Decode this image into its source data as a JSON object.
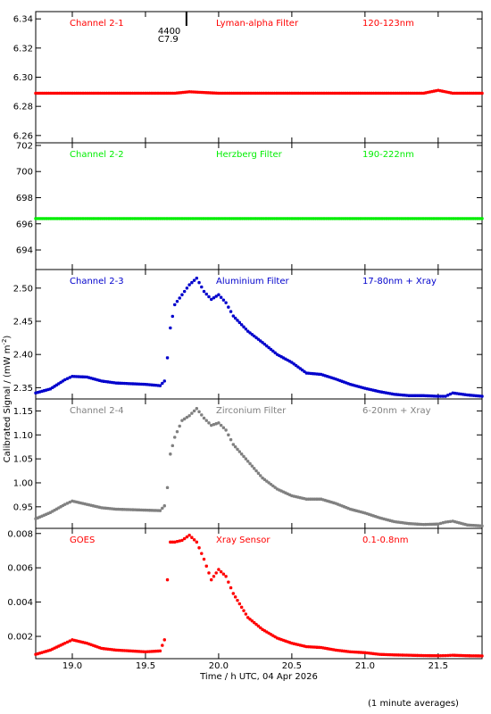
{
  "figure": {
    "xlabel": "Time / h UTC, 04 Apr 2026",
    "ylabel": "Calibrated Signal / (mW m",
    "ylabel_sup": "-2",
    "ylabel_end": ")",
    "footnote": "(1 minute averages)",
    "marker_label_1": "4400",
    "marker_label_2": "C7.9",
    "marker_time": 19.78
  },
  "chart_data": [
    {
      "type": "scatter",
      "channel": "Channel 2-1",
      "filter": "Lyman-alpha Filter",
      "band": "120-123nm",
      "color": "#ff0000",
      "xlim": [
        18.75,
        21.8
      ],
      "ylim": [
        6.255,
        6.345
      ],
      "yticks": [
        6.26,
        6.28,
        6.3,
        6.32,
        6.34
      ],
      "ytick_labels": [
        "6.26",
        "6.28",
        "6.30",
        "6.32",
        "6.34"
      ],
      "x": [
        18.75,
        19.0,
        19.5,
        19.7,
        19.8,
        20.0,
        20.5,
        21.0,
        21.4,
        21.5,
        21.6,
        21.8
      ],
      "y": [
        6.289,
        6.289,
        6.289,
        6.289,
        6.29,
        6.289,
        6.289,
        6.289,
        6.289,
        6.291,
        6.289,
        6.289
      ]
    },
    {
      "type": "scatter",
      "channel": "Channel 2-2",
      "filter": "Herzberg Filter",
      "band": "190-222nm",
      "color": "#00ee00",
      "xlim": [
        18.75,
        21.8
      ],
      "ylim": [
        692.5,
        702.2
      ],
      "yticks": [
        694,
        696,
        698,
        700,
        702
      ],
      "ytick_labels": [
        "694",
        "696",
        "698",
        "700",
        "702"
      ],
      "x": [
        18.75,
        19.5,
        20.0,
        20.5,
        21.0,
        21.5,
        21.8
      ],
      "y": [
        696.4,
        696.4,
        696.4,
        696.4,
        696.4,
        696.4,
        696.4
      ]
    },
    {
      "type": "scatter",
      "channel": "Channel 2-3",
      "filter": "Aluminium Filter",
      "band": "17-80nm + Xray",
      "color": "#0000cc",
      "xlim": [
        18.75,
        21.8
      ],
      "ylim": [
        2.333,
        2.528
      ],
      "yticks": [
        2.35,
        2.4,
        2.45,
        2.5
      ],
      "ytick_labels": [
        "2.35",
        "2.40",
        "2.45",
        "2.50"
      ],
      "x": [
        18.75,
        18.85,
        18.95,
        19.0,
        19.1,
        19.2,
        19.3,
        19.5,
        19.6,
        19.63,
        19.65,
        19.67,
        19.7,
        19.75,
        19.8,
        19.85,
        19.9,
        19.95,
        20.0,
        20.05,
        20.1,
        20.2,
        20.3,
        20.4,
        20.5,
        20.6,
        20.7,
        20.8,
        20.9,
        21.0,
        21.1,
        21.2,
        21.3,
        21.4,
        21.5,
        21.55,
        21.6,
        21.7,
        21.8
      ],
      "y": [
        2.342,
        2.348,
        2.362,
        2.367,
        2.366,
        2.36,
        2.357,
        2.355,
        2.353,
        2.36,
        2.395,
        2.44,
        2.475,
        2.49,
        2.505,
        2.515,
        2.495,
        2.483,
        2.49,
        2.478,
        2.458,
        2.435,
        2.418,
        2.4,
        2.388,
        2.372,
        2.37,
        2.363,
        2.355,
        2.349,
        2.344,
        2.34,
        2.338,
        2.338,
        2.337,
        2.337,
        2.342,
        2.339,
        2.337
      ]
    },
    {
      "type": "scatter",
      "channel": "Channel 2-4",
      "filter": "Zirconium Filter",
      "band": "6-20nm + Xray",
      "color": "#808080",
      "xlim": [
        18.75,
        21.8
      ],
      "ylim": [
        0.905,
        1.175
      ],
      "yticks": [
        0.95,
        1.0,
        1.05,
        1.1,
        1.15
      ],
      "ytick_labels": [
        "0.95",
        "1.00",
        "1.05",
        "1.10",
        "1.15"
      ],
      "x": [
        18.75,
        18.85,
        18.95,
        19.0,
        19.1,
        19.2,
        19.3,
        19.5,
        19.6,
        19.63,
        19.65,
        19.67,
        19.7,
        19.75,
        19.8,
        19.85,
        19.9,
        19.95,
        20.0,
        20.05,
        20.1,
        20.2,
        20.3,
        20.4,
        20.5,
        20.6,
        20.7,
        20.8,
        20.9,
        21.0,
        21.1,
        21.2,
        21.3,
        21.4,
        21.5,
        21.55,
        21.6,
        21.7,
        21.8
      ],
      "y": [
        0.925,
        0.938,
        0.955,
        0.962,
        0.955,
        0.948,
        0.945,
        0.943,
        0.942,
        0.952,
        0.99,
        1.06,
        1.095,
        1.13,
        1.14,
        1.155,
        1.135,
        1.12,
        1.125,
        1.11,
        1.08,
        1.045,
        1.01,
        0.987,
        0.973,
        0.966,
        0.966,
        0.957,
        0.945,
        0.937,
        0.927,
        0.919,
        0.915,
        0.913,
        0.914,
        0.918,
        0.92,
        0.912,
        0.91
      ]
    },
    {
      "type": "scatter",
      "channel": "GOES",
      "filter": "Xray Sensor",
      "band": "0.1-0.8nm",
      "color": "#ff0000",
      "xlim": [
        18.75,
        21.8
      ],
      "ylim": [
        0.0007,
        0.0083
      ],
      "yticks": [
        0.002,
        0.004,
        0.006,
        0.008
      ],
      "ytick_labels": [
        "0.002",
        "0.004",
        "0.006",
        "0.008"
      ],
      "x": [
        18.75,
        18.85,
        18.95,
        19.0,
        19.1,
        19.2,
        19.3,
        19.5,
        19.6,
        19.63,
        19.65,
        19.67,
        19.7,
        19.75,
        19.8,
        19.85,
        19.9,
        19.95,
        20.0,
        20.05,
        20.1,
        20.2,
        20.3,
        20.4,
        20.5,
        20.6,
        20.7,
        20.8,
        20.9,
        21.0,
        21.1,
        21.2,
        21.3,
        21.4,
        21.5,
        21.55,
        21.6,
        21.7,
        21.8
      ],
      "y": [
        0.00095,
        0.0012,
        0.0016,
        0.0018,
        0.0016,
        0.0013,
        0.0012,
        0.0011,
        0.00115,
        0.0018,
        0.0053,
        0.0075,
        0.0075,
        0.0076,
        0.0079,
        0.0075,
        0.0065,
        0.0053,
        0.0059,
        0.0055,
        0.0045,
        0.0031,
        0.0024,
        0.0019,
        0.0016,
        0.0014,
        0.00135,
        0.0012,
        0.0011,
        0.00105,
        0.00095,
        0.00092,
        0.0009,
        0.00088,
        0.00087,
        0.00088,
        0.0009,
        0.00087,
        0.00086
      ]
    }
  ],
  "x_axis": {
    "ticks": [
      19.0,
      19.5,
      20.0,
      20.5,
      21.0,
      21.5
    ],
    "tick_labels": [
      "19.0",
      "19.5",
      "20.0",
      "20.5",
      "21.0",
      "21.5"
    ]
  }
}
